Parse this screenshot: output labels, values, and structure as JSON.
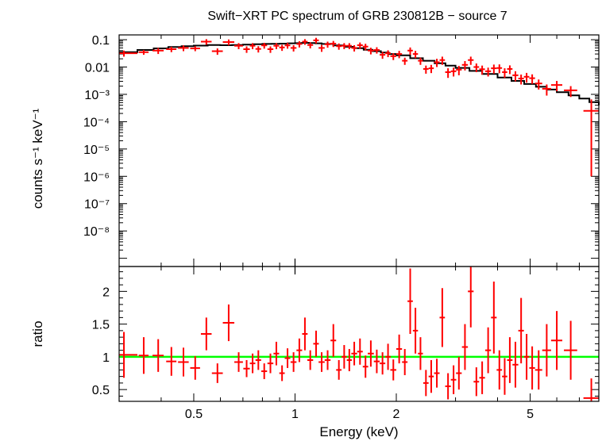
{
  "colors": {
    "data": "#ff0000",
    "model": "#000000",
    "ratio_line": "#00ff00",
    "frame": "#000000",
    "background": "#ffffff"
  },
  "chart_data": [
    {
      "type": "scatter",
      "panel": "spectrum",
      "title": "Swift−XRT PC spectrum of GRB 230812B − source 7",
      "ylabel": "counts s⁻¹ keV⁻¹",
      "xlabel": "",
      "xscale": "log",
      "yscale": "log",
      "xlim": [
        0.3,
        8.0
      ],
      "ylim": [
        5e-10,
        0.15
      ],
      "y_tick_labels": [
        "0.1",
        "0.01",
        "10⁻³",
        "10⁻⁴",
        "10⁻⁵",
        "10⁻⁶",
        "10⁻⁷",
        "10⁻⁸"
      ],
      "series": [
        {
          "kind": "data",
          "x": [
            0.31,
            0.355,
            0.392,
            0.429,
            0.466,
            0.505,
            0.545,
            0.588,
            0.635,
            0.68,
            0.718,
            0.748,
            0.778,
            0.81,
            0.845,
            0.88,
            0.915,
            0.95,
            0.99,
            1.03,
            1.07,
            1.11,
            1.155,
            1.2,
            1.25,
            1.3,
            1.35,
            1.4,
            1.45,
            1.5,
            1.56,
            1.62,
            1.68,
            1.75,
            1.82,
            1.89,
            1.96,
            2.04,
            2.12,
            2.2,
            2.28,
            2.36,
            2.45,
            2.54,
            2.64,
            2.74,
            2.85,
            2.96,
            3.07,
            3.2,
            3.33,
            3.46,
            3.6,
            3.75,
            3.9,
            4.05,
            4.2,
            4.35,
            4.52,
            4.7,
            4.88,
            5.07,
            5.3,
            5.6,
            6.0,
            6.6,
            7.6
          ],
          "xerr": [
            0.03,
            0.012,
            0.015,
            0.015,
            0.017,
            0.017,
            0.02,
            0.022,
            0.025,
            0.02,
            0.016,
            0.014,
            0.015,
            0.016,
            0.017,
            0.017,
            0.017,
            0.018,
            0.02,
            0.02,
            0.02,
            0.022,
            0.022,
            0.025,
            0.025,
            0.025,
            0.025,
            0.025,
            0.025,
            0.03,
            0.03,
            0.03,
            0.035,
            0.035,
            0.035,
            0.035,
            0.04,
            0.04,
            0.04,
            0.04,
            0.04,
            0.04,
            0.045,
            0.045,
            0.05,
            0.05,
            0.055,
            0.055,
            0.06,
            0.065,
            0.065,
            0.065,
            0.07,
            0.075,
            0.075,
            0.075,
            0.075,
            0.08,
            0.09,
            0.09,
            0.09,
            0.1,
            0.13,
            0.17,
            0.23,
            0.3,
            0.4
          ],
          "y": [
            0.032,
            0.035,
            0.04,
            0.045,
            0.05,
            0.048,
            0.085,
            0.038,
            0.082,
            0.06,
            0.045,
            0.06,
            0.046,
            0.062,
            0.045,
            0.06,
            0.052,
            0.062,
            0.05,
            0.07,
            0.085,
            0.064,
            0.095,
            0.05,
            0.068,
            0.072,
            0.058,
            0.06,
            0.06,
            0.05,
            0.063,
            0.056,
            0.04,
            0.042,
            0.028,
            0.032,
            0.025,
            0.03,
            0.017,
            0.04,
            0.03,
            0.017,
            0.0085,
            0.009,
            0.015,
            0.018,
            0.0065,
            0.007,
            0.008,
            0.012,
            0.018,
            0.01,
            0.0083,
            0.007,
            0.009,
            0.0092,
            0.0065,
            0.0085,
            0.005,
            0.0038,
            0.0044,
            0.0039,
            0.0025,
            0.0016,
            0.0022,
            0.0014,
            0.00025
          ],
          "yerr_low": [
            0.008,
            0.007,
            0.01,
            0.01,
            0.012,
            0.01,
            0.02,
            0.01,
            0.02,
            0.015,
            0.012,
            0.015,
            0.012,
            0.015,
            0.012,
            0.015,
            0.013,
            0.015,
            0.013,
            0.018,
            0.02,
            0.016,
            0.022,
            0.014,
            0.017,
            0.018,
            0.015,
            0.015,
            0.015,
            0.013,
            0.016,
            0.015,
            0.011,
            0.011,
            0.008,
            0.009,
            0.007,
            0.009,
            0.005,
            0.012,
            0.009,
            0.005,
            0.0028,
            0.003,
            0.005,
            0.006,
            0.0025,
            0.0025,
            0.003,
            0.0045,
            0.006,
            0.0035,
            0.003,
            0.0025,
            0.0033,
            0.0033,
            0.0025,
            0.003,
            0.002,
            0.0015,
            0.0017,
            0.0015,
            0.001,
            0.0007,
            0.0009,
            0.0006,
            0.000249
          ],
          "yerr_high": [
            0.008,
            0.007,
            0.01,
            0.01,
            0.012,
            0.01,
            0.02,
            0.01,
            0.02,
            0.015,
            0.012,
            0.015,
            0.012,
            0.015,
            0.012,
            0.015,
            0.013,
            0.015,
            0.013,
            0.018,
            0.02,
            0.016,
            0.022,
            0.014,
            0.017,
            0.018,
            0.015,
            0.015,
            0.015,
            0.013,
            0.016,
            0.015,
            0.011,
            0.011,
            0.008,
            0.009,
            0.007,
            0.009,
            0.005,
            0.012,
            0.009,
            0.005,
            0.0028,
            0.003,
            0.005,
            0.006,
            0.0025,
            0.0025,
            0.003,
            0.0045,
            0.006,
            0.0035,
            0.003,
            0.0025,
            0.0033,
            0.0033,
            0.0025,
            0.003,
            0.002,
            0.0015,
            0.0017,
            0.0015,
            0.001,
            0.0007,
            0.0009,
            0.0006,
            0.0004
          ]
        },
        {
          "kind": "model",
          "x": [
            0.3,
            0.34,
            0.38,
            0.42,
            0.46,
            0.5,
            0.55,
            0.6,
            0.65,
            0.7,
            0.75,
            0.8,
            0.85,
            0.9,
            0.95,
            1.0,
            1.05,
            1.1,
            1.15,
            1.2,
            1.3,
            1.4,
            1.5,
            1.6,
            1.7,
            1.8,
            1.9,
            2.0,
            2.2,
            2.4,
            2.6,
            2.8,
            3.0,
            3.3,
            3.6,
            4.0,
            4.4,
            4.8,
            5.2,
            5.6,
            6.0,
            6.5,
            7.0,
            7.5,
            8.0
          ],
          "y": [
            0.035,
            0.042,
            0.048,
            0.054,
            0.058,
            0.061,
            0.064,
            0.063,
            0.064,
            0.066,
            0.068,
            0.07,
            0.071,
            0.072,
            0.074,
            0.075,
            0.077,
            0.076,
            0.074,
            0.07,
            0.062,
            0.055,
            0.049,
            0.043,
            0.038,
            0.034,
            0.03,
            0.027,
            0.021,
            0.017,
            0.0138,
            0.0113,
            0.0093,
            0.0072,
            0.0056,
            0.0041,
            0.0031,
            0.0024,
            0.0019,
            0.0015,
            0.0012,
            0.00092,
            0.0007,
            0.00052,
            0.0004
          ]
        }
      ]
    },
    {
      "type": "scatter",
      "panel": "ratio",
      "xlabel": "Energy (keV)",
      "ylabel": "ratio",
      "xscale": "log",
      "xlim": [
        0.3,
        8.0
      ],
      "ylim": [
        0.32,
        2.38
      ],
      "y_ticks": [
        0.5,
        1,
        1.5,
        2
      ],
      "y_tick_labels": [
        "0.5",
        "1",
        "1.5",
        "2"
      ],
      "x_ticks": [
        0.5,
        1,
        2,
        5
      ],
      "x_tick_labels": [
        "0.5",
        "1",
        "2",
        "5"
      ],
      "reference_line": 1,
      "series": [
        {
          "kind": "data",
          "x": [
            0.31,
            0.355,
            0.392,
            0.429,
            0.466,
            0.505,
            0.545,
            0.588,
            0.635,
            0.68,
            0.718,
            0.748,
            0.778,
            0.81,
            0.845,
            0.88,
            0.915,
            0.95,
            0.99,
            1.03,
            1.07,
            1.11,
            1.155,
            1.2,
            1.25,
            1.3,
            1.35,
            1.4,
            1.45,
            1.5,
            1.56,
            1.62,
            1.68,
            1.75,
            1.82,
            1.89,
            1.96,
            2.04,
            2.12,
            2.2,
            2.28,
            2.36,
            2.45,
            2.54,
            2.64,
            2.74,
            2.85,
            2.96,
            3.07,
            3.2,
            3.33,
            3.46,
            3.6,
            3.75,
            3.9,
            4.05,
            4.2,
            4.35,
            4.52,
            4.7,
            4.88,
            5.07,
            5.3,
            5.6,
            6.0,
            6.6,
            7.6
          ],
          "xerr": [
            0.03,
            0.012,
            0.015,
            0.015,
            0.017,
            0.017,
            0.02,
            0.022,
            0.025,
            0.02,
            0.016,
            0.014,
            0.015,
            0.016,
            0.017,
            0.017,
            0.017,
            0.018,
            0.02,
            0.02,
            0.02,
            0.022,
            0.022,
            0.025,
            0.025,
            0.025,
            0.025,
            0.025,
            0.025,
            0.03,
            0.03,
            0.03,
            0.035,
            0.035,
            0.035,
            0.035,
            0.04,
            0.04,
            0.04,
            0.04,
            0.04,
            0.04,
            0.045,
            0.045,
            0.05,
            0.05,
            0.055,
            0.055,
            0.06,
            0.065,
            0.065,
            0.065,
            0.07,
            0.075,
            0.075,
            0.075,
            0.075,
            0.08,
            0.09,
            0.09,
            0.09,
            0.1,
            0.13,
            0.17,
            0.23,
            0.3,
            0.4
          ],
          "y": [
            1.03,
            1.02,
            1.02,
            0.93,
            0.92,
            0.83,
            1.35,
            0.75,
            1.52,
            0.92,
            0.82,
            0.9,
            0.95,
            0.78,
            0.9,
            1.05,
            0.75,
            0.98,
            0.92,
            1.1,
            1.35,
            0.95,
            1.2,
            0.92,
            0.95,
            1.25,
            0.8,
            1.0,
            0.95,
            1.05,
            1.08,
            0.85,
            1.05,
            0.93,
            0.9,
            1.0,
            0.8,
            1.12,
            0.92,
            1.85,
            1.4,
            1.05,
            0.6,
            0.7,
            0.75,
            1.6,
            0.55,
            0.65,
            0.75,
            1.15,
            2.0,
            0.62,
            0.68,
            1.1,
            1.6,
            0.8,
            0.7,
            0.95,
            0.88,
            1.4,
            1.0,
            0.83,
            0.8,
            1.1,
            1.25,
            1.1,
            0.37
          ],
          "yerr": [
            0.35,
            0.28,
            0.25,
            0.22,
            0.22,
            0.18,
            0.25,
            0.15,
            0.28,
            0.15,
            0.13,
            0.15,
            0.15,
            0.12,
            0.15,
            0.18,
            0.12,
            0.15,
            0.15,
            0.18,
            0.25,
            0.15,
            0.2,
            0.15,
            0.15,
            0.25,
            0.15,
            0.18,
            0.17,
            0.18,
            0.2,
            0.17,
            0.2,
            0.18,
            0.17,
            0.2,
            0.16,
            0.22,
            0.2,
            0.5,
            0.35,
            0.25,
            0.2,
            0.25,
            0.22,
            0.45,
            0.2,
            0.22,
            0.25,
            0.35,
            0.55,
            0.22,
            0.25,
            0.35,
            0.55,
            0.3,
            0.28,
            0.35,
            0.35,
            0.5,
            0.35,
            0.33,
            0.3,
            0.4,
            0.45,
            0.45,
            0.3
          ]
        }
      ]
    }
  ]
}
